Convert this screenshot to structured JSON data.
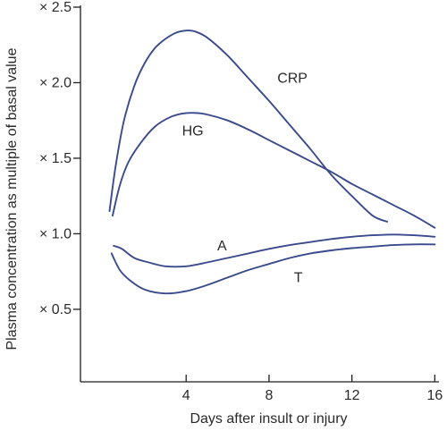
{
  "chart_data": {
    "type": "line",
    "xlabel": "Days after insult or injury",
    "ylabel": "Plasma concentration as multiple of basal value",
    "xlim": [
      -1.1,
      16.2
    ],
    "ylim": [
      0.02,
      2.5
    ],
    "x_ticks": [
      {
        "value": 4,
        "label": "4"
      },
      {
        "value": 8,
        "label": "8"
      },
      {
        "value": 12,
        "label": "12"
      },
      {
        "value": 16,
        "label": "16"
      }
    ],
    "y_ticks": [
      {
        "value": 0.5,
        "label": "× 0.5"
      },
      {
        "value": 1.0,
        "label": "× 1.0"
      },
      {
        "value": 1.5,
        "label": "× 1.5"
      },
      {
        "value": 2.0,
        "label": "× 2.0"
      },
      {
        "value": 2.5,
        "label": "× 2.5"
      }
    ],
    "grid": false,
    "line_color": "#3a4a8c",
    "series": [
      {
        "name": "CRP",
        "label_at": [
          8.4,
          2.0
        ],
        "points": [
          [
            0.3,
            1.15
          ],
          [
            0.6,
            1.45
          ],
          [
            1.0,
            1.75
          ],
          [
            1.5,
            1.98
          ],
          [
            2.0,
            2.13
          ],
          [
            2.5,
            2.23
          ],
          [
            3.0,
            2.29
          ],
          [
            3.5,
            2.33
          ],
          [
            4.0,
            2.345
          ],
          [
            4.4,
            2.34
          ],
          [
            5.0,
            2.3
          ],
          [
            6.0,
            2.18
          ],
          [
            7.0,
            2.03
          ],
          [
            8.0,
            1.88
          ],
          [
            9.0,
            1.72
          ],
          [
            10.0,
            1.56
          ],
          [
            11.0,
            1.39
          ],
          [
            12.0,
            1.25
          ],
          [
            13.0,
            1.12
          ],
          [
            13.7,
            1.08
          ]
        ]
      },
      {
        "name": "HG",
        "label_at": [
          3.8,
          1.65
        ],
        "points": [
          [
            0.45,
            1.12
          ],
          [
            0.8,
            1.32
          ],
          [
            1.2,
            1.47
          ],
          [
            1.8,
            1.6
          ],
          [
            2.5,
            1.71
          ],
          [
            3.2,
            1.77
          ],
          [
            3.8,
            1.795
          ],
          [
            4.4,
            1.8
          ],
          [
            5.0,
            1.79
          ],
          [
            6.0,
            1.75
          ],
          [
            7.0,
            1.69
          ],
          [
            8.0,
            1.62
          ],
          [
            9.0,
            1.55
          ],
          [
            10.0,
            1.48
          ],
          [
            11.0,
            1.41
          ],
          [
            12.0,
            1.33
          ],
          [
            13.0,
            1.26
          ],
          [
            14.0,
            1.19
          ],
          [
            15.0,
            1.12
          ],
          [
            16.0,
            1.04
          ]
        ]
      },
      {
        "name": "A",
        "label_at": [
          5.5,
          0.89
        ],
        "points": [
          [
            0.5,
            0.92
          ],
          [
            0.9,
            0.9
          ],
          [
            1.5,
            0.84
          ],
          [
            2.2,
            0.81
          ],
          [
            3.0,
            0.785
          ],
          [
            4.0,
            0.785
          ],
          [
            5.0,
            0.81
          ],
          [
            6.0,
            0.84
          ],
          [
            7.0,
            0.87
          ],
          [
            8.0,
            0.9
          ],
          [
            9.0,
            0.925
          ],
          [
            10.0,
            0.945
          ],
          [
            11.0,
            0.965
          ],
          [
            12.0,
            0.98
          ],
          [
            13.0,
            0.99
          ],
          [
            14.0,
            0.995
          ],
          [
            15.0,
            0.99
          ],
          [
            16.0,
            0.98
          ]
        ]
      },
      {
        "name": "T",
        "label_at": [
          9.2,
          0.68
        ],
        "points": [
          [
            0.4,
            0.87
          ],
          [
            0.8,
            0.76
          ],
          [
            1.3,
            0.69
          ],
          [
            2.0,
            0.63
          ],
          [
            3.0,
            0.605
          ],
          [
            4.0,
            0.62
          ],
          [
            5.0,
            0.66
          ],
          [
            6.0,
            0.71
          ],
          [
            7.0,
            0.76
          ],
          [
            8.0,
            0.8
          ],
          [
            9.0,
            0.84
          ],
          [
            10.0,
            0.87
          ],
          [
            11.0,
            0.89
          ],
          [
            12.0,
            0.905
          ],
          [
            13.0,
            0.915
          ],
          [
            14.0,
            0.925
          ],
          [
            15.0,
            0.93
          ],
          [
            16.0,
            0.93
          ]
        ]
      }
    ]
  }
}
